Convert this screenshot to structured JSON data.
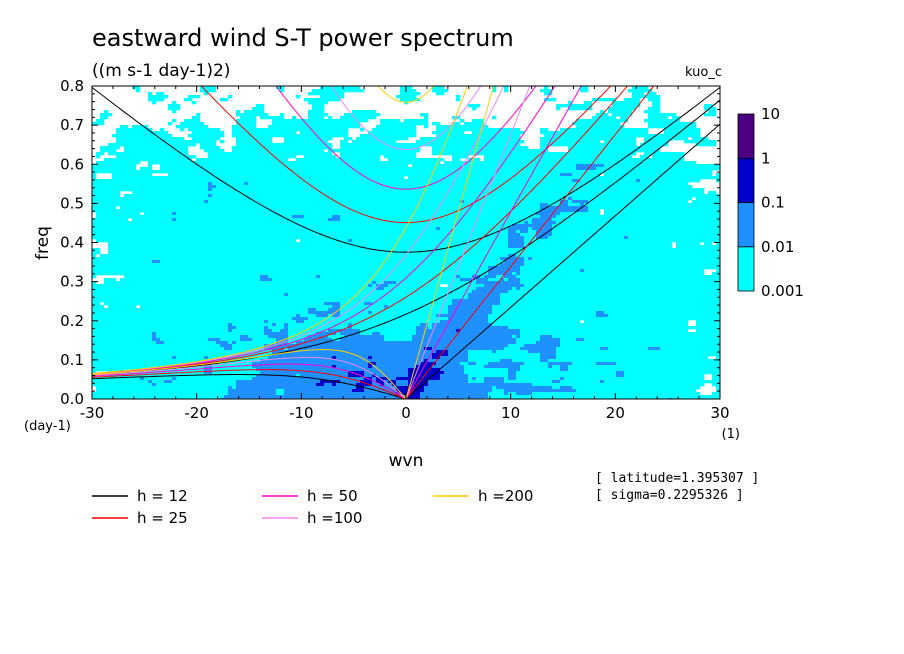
{
  "chart_data": {
    "type": "heatmap",
    "title": "eastward wind S-T power spectrum",
    "subtitle": "((m s-1 day-1)2)",
    "model_label": "kuo_c",
    "xlabel": "wvn",
    "ylabel": "freq",
    "x_unit": "(1)",
    "y_unit": "(day-1)",
    "xlim": [
      -30,
      30
    ],
    "ylim": [
      0,
      0.8
    ],
    "x_ticks": [
      -30,
      -20,
      -10,
      0,
      10,
      20,
      30
    ],
    "x_tick_labels": [
      "-30",
      "-20",
      "-10",
      "0",
      "10",
      "20",
      "30"
    ],
    "y_ticks": [
      0.0,
      0.1,
      0.2,
      0.3,
      0.4,
      0.5,
      0.6,
      0.7,
      0.8
    ],
    "y_tick_labels": [
      "0.0",
      "0.1",
      "0.2",
      "0.3",
      "0.4",
      "0.5",
      "0.6",
      "0.7",
      "0.8"
    ],
    "colorbar": {
      "scale": "log",
      "levels": [
        0.001,
        0.01,
        0.1,
        1,
        10
      ],
      "level_labels": [
        "0.001",
        "0.01",
        "0.1",
        "1",
        "10"
      ],
      "colors": [
        "#00ffff",
        "#1e90ff",
        "#0000cd",
        "#4b0082"
      ]
    },
    "dispersion_curves": [
      {
        "name": "h = 12",
        "h": 12,
        "color": "#000000"
      },
      {
        "name": "h = 25",
        "h": 25,
        "color": "#ff0000"
      },
      {
        "name": "h = 50",
        "h": 50,
        "color": "#ff00cc"
      },
      {
        "name": "h =100",
        "h": 100,
        "color": "#ee88ee"
      },
      {
        "name": "h =200",
        "h": 200,
        "color": "#ffcc00"
      }
    ],
    "annotations": {
      "latitude": "[ latitude=1.395307 ]",
      "sigma": "[ sigma=0.2295326 ]"
    }
  }
}
